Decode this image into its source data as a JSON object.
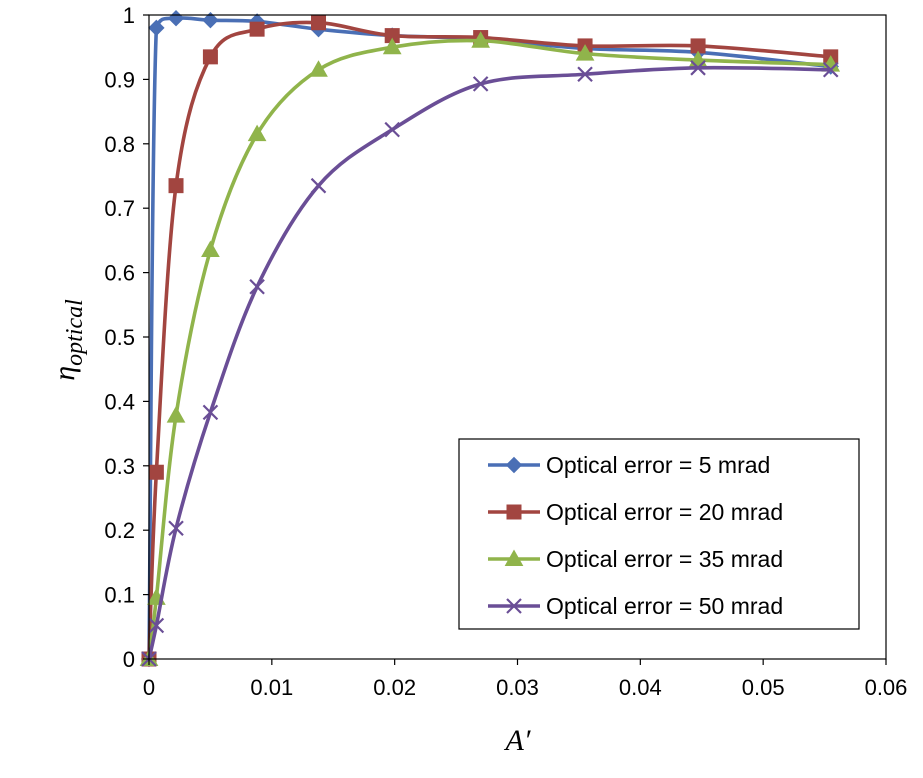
{
  "chart_data": {
    "type": "line",
    "title": "",
    "xlabel": "A′",
    "ylabel_main": "η",
    "ylabel_sub": "optical",
    "xlim": [
      0,
      0.06
    ],
    "ylim": [
      0,
      1
    ],
    "x_ticks": [
      0,
      0.01,
      0.02,
      0.03,
      0.04,
      0.05,
      0.06
    ],
    "x_tick_labels": [
      "0",
      "0.01",
      "0.02",
      "0.03",
      "0.04",
      "0.05",
      "0.06"
    ],
    "y_ticks": [
      0,
      0.1,
      0.2,
      0.3,
      0.4,
      0.5,
      0.6,
      0.7,
      0.8,
      0.9,
      1
    ],
    "y_tick_labels": [
      "0",
      "0.1",
      "0.2",
      "0.3",
      "0.4",
      "0.5",
      "0.6",
      "0.7",
      "0.8",
      "0.9",
      "1"
    ],
    "grid": false,
    "legend_position": "bottom-right",
    "series": [
      {
        "name": "Optical error = 5 mrad",
        "color": "#4a6fb5",
        "marker": "diamond",
        "points": [
          [
            0,
            0
          ],
          [
            0.0006,
            0.98
          ],
          [
            0.0022,
            0.995
          ],
          [
            0.005,
            0.992
          ],
          [
            0.0088,
            0.99
          ],
          [
            0.0138,
            0.978
          ],
          [
            0.0198,
            0.968
          ],
          [
            0.027,
            0.963
          ],
          [
            0.0355,
            0.948
          ],
          [
            0.0447,
            0.942
          ],
          [
            0.0555,
            0.92
          ]
        ]
      },
      {
        "name": "Optical error = 20 mrad",
        "color": "#a24540",
        "marker": "square",
        "points": [
          [
            0,
            0
          ],
          [
            0.0006,
            0.29
          ],
          [
            0.0022,
            0.735
          ],
          [
            0.005,
            0.935
          ],
          [
            0.0088,
            0.978
          ],
          [
            0.0138,
            0.988
          ],
          [
            0.0198,
            0.968
          ],
          [
            0.027,
            0.965
          ],
          [
            0.0355,
            0.952
          ],
          [
            0.0447,
            0.952
          ],
          [
            0.0555,
            0.935
          ]
        ]
      },
      {
        "name": "Optical error = 35 mrad",
        "color": "#90b44b",
        "marker": "triangle",
        "points": [
          [
            0,
            0
          ],
          [
            0.0006,
            0.095
          ],
          [
            0.0022,
            0.378
          ],
          [
            0.005,
            0.635
          ],
          [
            0.0088,
            0.815
          ],
          [
            0.0138,
            0.915
          ],
          [
            0.0198,
            0.95
          ],
          [
            0.027,
            0.96
          ],
          [
            0.0355,
            0.94
          ],
          [
            0.0447,
            0.93
          ],
          [
            0.0555,
            0.923
          ]
        ]
      },
      {
        "name": "Optical error = 50 mrad",
        "color": "#6a4e96",
        "marker": "x",
        "points": [
          [
            0,
            0
          ],
          [
            0.0006,
            0.052
          ],
          [
            0.0022,
            0.203
          ],
          [
            0.005,
            0.383
          ],
          [
            0.0088,
            0.578
          ],
          [
            0.0138,
            0.735
          ],
          [
            0.0198,
            0.822
          ],
          [
            0.027,
            0.893
          ],
          [
            0.0355,
            0.908
          ],
          [
            0.0447,
            0.918
          ],
          [
            0.0555,
            0.915
          ]
        ]
      }
    ]
  }
}
